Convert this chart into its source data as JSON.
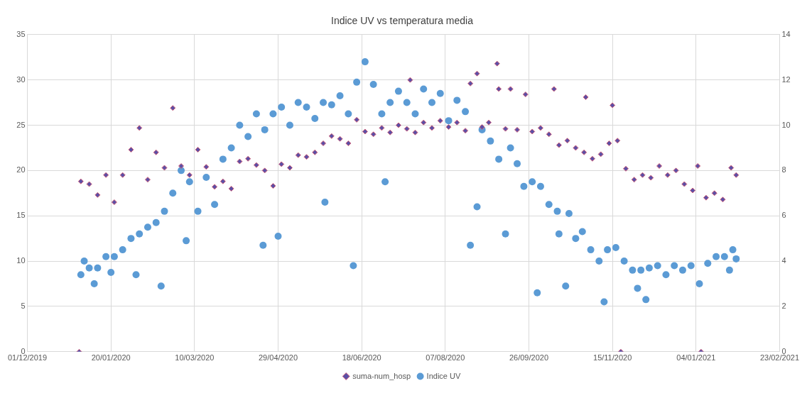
{
  "chart_data": {
    "type": "scatter",
    "title": "Indice UV vs temperatura media",
    "xlim": [
      "2019-12-01",
      "2021-02-23"
    ],
    "xticks": [
      {
        "value": "2019-12-01",
        "label": "01/12/2019"
      },
      {
        "value": "2020-01-20",
        "label": "20/01/2020"
      },
      {
        "value": "2020-03-10",
        "label": "10/03/2020"
      },
      {
        "value": "2020-04-29",
        "label": "29/04/2020"
      },
      {
        "value": "2020-06-18",
        "label": "18/06/2020"
      },
      {
        "value": "2020-08-07",
        "label": "07/08/2020"
      },
      {
        "value": "2020-09-26",
        "label": "26/09/2020"
      },
      {
        "value": "2020-11-15",
        "label": "15/11/2020"
      },
      {
        "value": "2021-01-04",
        "label": "04/01/2021"
      },
      {
        "value": "2021-02-23",
        "label": "23/02/2021"
      }
    ],
    "ylim": [
      0,
      35
    ],
    "yticks": [
      0,
      5,
      10,
      15,
      20,
      25,
      30,
      35
    ],
    "y2lim": [
      0,
      14
    ],
    "y2ticks": [
      0,
      2,
      4,
      6,
      8,
      10,
      12,
      14
    ],
    "grid": true,
    "legend": "bottom",
    "series": [
      {
        "name": "suma-num_hosp",
        "color": "#5b4fa6",
        "marker": "diamond",
        "x": [
          "2020-01-01",
          "2020-01-02",
          "2020-01-07",
          "2020-01-12",
          "2020-01-17",
          "2020-01-22",
          "2020-01-27",
          "2020-02-01",
          "2020-02-06",
          "2020-02-11",
          "2020-02-16",
          "2020-02-21",
          "2020-02-26",
          "2020-03-02",
          "2020-03-07",
          "2020-03-12",
          "2020-03-17",
          "2020-03-22",
          "2020-03-27",
          "2020-04-01",
          "2020-04-06",
          "2020-04-11",
          "2020-04-16",
          "2020-04-21",
          "2020-04-26",
          "2020-05-01",
          "2020-05-06",
          "2020-05-11",
          "2020-05-16",
          "2020-05-21",
          "2020-05-26",
          "2020-05-31",
          "2020-06-05",
          "2020-06-10",
          "2020-06-15",
          "2020-06-20",
          "2020-06-25",
          "2020-06-30",
          "2020-07-05",
          "2020-07-10",
          "2020-07-15",
          "2020-07-17",
          "2020-07-20",
          "2020-07-25",
          "2020-07-30",
          "2020-08-04",
          "2020-08-09",
          "2020-08-14",
          "2020-08-19",
          "2020-08-22",
          "2020-08-26",
          "2020-08-29",
          "2020-09-02",
          "2020-09-07",
          "2020-09-08",
          "2020-09-12",
          "2020-09-15",
          "2020-09-19",
          "2020-09-24",
          "2020-09-28",
          "2020-10-03",
          "2020-10-08",
          "2020-10-11",
          "2020-10-14",
          "2020-10-19",
          "2020-10-24",
          "2020-10-29",
          "2020-10-30",
          "2020-11-03",
          "2020-11-08",
          "2020-11-13",
          "2020-11-15",
          "2020-11-18",
          "2020-11-20",
          "2020-11-23",
          "2020-11-28",
          "2020-12-03",
          "2020-12-08",
          "2020-12-13",
          "2020-12-18",
          "2020-12-23",
          "2020-12-28",
          "2021-01-02",
          "2021-01-05",
          "2021-01-07",
          "2021-01-10",
          "2021-01-15",
          "2021-01-20",
          "2021-01-25",
          "2021-01-28"
        ],
        "values": [
          0,
          18.8,
          18.5,
          17.3,
          19.5,
          16.5,
          19.5,
          22.3,
          24.7,
          19.0,
          22.0,
          20.3,
          26.9,
          20.5,
          19.5,
          22.3,
          20.4,
          18.2,
          18.8,
          18.0,
          21.0,
          21.3,
          20.6,
          20.0,
          18.3,
          20.7,
          20.3,
          21.7,
          21.5,
          22.0,
          23.0,
          23.8,
          23.5,
          23.0,
          25.6,
          24.3,
          24.0,
          24.7,
          24.2,
          25.0,
          24.6,
          30.0,
          24.2,
          25.3,
          24.7,
          25.5,
          24.8,
          25.3,
          24.4,
          29.6,
          30.7,
          24.8,
          25.3,
          31.8,
          29.0,
          24.6,
          29.0,
          24.5,
          28.4,
          24.3,
          24.7,
          24.0,
          29.0,
          22.8,
          23.3,
          22.5,
          22.0,
          28.1,
          21.3,
          21.8,
          23.0,
          27.2,
          23.3,
          0,
          20.2,
          19.0,
          19.5,
          19.2,
          20.5,
          19.5,
          20.0,
          18.5,
          17.8,
          20.5,
          0,
          17.0,
          17.5,
          16.8,
          20.3,
          19.5
        ]
      },
      {
        "name": "Indice UV",
        "color": "#5b9bd5",
        "marker": "circle",
        "axis": "y2",
        "x": [
          "2020-01-02",
          "2020-01-04",
          "2020-01-07",
          "2020-01-10",
          "2020-01-12",
          "2020-01-17",
          "2020-01-20",
          "2020-01-22",
          "2020-01-27",
          "2020-02-01",
          "2020-02-04",
          "2020-02-06",
          "2020-02-11",
          "2020-02-16",
          "2020-02-19",
          "2020-02-21",
          "2020-02-26",
          "2020-03-02",
          "2020-03-05",
          "2020-03-07",
          "2020-03-12",
          "2020-03-17",
          "2020-03-22",
          "2020-03-27",
          "2020-04-01",
          "2020-04-06",
          "2020-04-11",
          "2020-04-16",
          "2020-04-20",
          "2020-04-21",
          "2020-04-26",
          "2020-04-29",
          "2020-05-01",
          "2020-05-06",
          "2020-05-11",
          "2020-05-16",
          "2020-05-21",
          "2020-05-26",
          "2020-05-27",
          "2020-05-31",
          "2020-06-05",
          "2020-06-10",
          "2020-06-13",
          "2020-06-15",
          "2020-06-20",
          "2020-06-25",
          "2020-06-30",
          "2020-07-02",
          "2020-07-05",
          "2020-07-10",
          "2020-07-15",
          "2020-07-20",
          "2020-07-25",
          "2020-07-30",
          "2020-08-04",
          "2020-08-09",
          "2020-08-14",
          "2020-08-19",
          "2020-08-22",
          "2020-08-26",
          "2020-08-29",
          "2020-09-03",
          "2020-09-08",
          "2020-09-12",
          "2020-09-15",
          "2020-09-19",
          "2020-09-23",
          "2020-09-28",
          "2020-10-01",
          "2020-10-03",
          "2020-10-08",
          "2020-10-13",
          "2020-10-14",
          "2020-10-18",
          "2020-10-20",
          "2020-10-24",
          "2020-10-28",
          "2020-11-02",
          "2020-11-07",
          "2020-11-10",
          "2020-11-12",
          "2020-11-17",
          "2020-11-22",
          "2020-11-27",
          "2020-11-30",
          "2020-12-02",
          "2020-12-05",
          "2020-12-07",
          "2020-12-12",
          "2020-12-17",
          "2020-12-22",
          "2020-12-27",
          "2021-01-01",
          "2021-01-06",
          "2021-01-11",
          "2021-01-16",
          "2021-01-21",
          "2021-01-24",
          "2021-01-26",
          "2021-01-28"
        ],
        "values": [
          3.4,
          4.0,
          3.7,
          3.0,
          3.7,
          4.2,
          3.5,
          4.2,
          4.5,
          5.0,
          3.4,
          5.2,
          5.5,
          5.7,
          2.9,
          6.2,
          7.0,
          8.0,
          4.9,
          7.5,
          6.2,
          7.7,
          6.5,
          8.5,
          9.0,
          10.0,
          9.5,
          10.5,
          4.7,
          9.8,
          10.5,
          5.1,
          10.8,
          10.0,
          11.0,
          10.8,
          10.3,
          11.0,
          6.6,
          10.9,
          11.3,
          10.5,
          3.8,
          11.9,
          12.8,
          11.8,
          10.5,
          7.5,
          11.0,
          11.5,
          11.0,
          10.5,
          11.6,
          11.0,
          11.4,
          10.2,
          11.1,
          10.6,
          4.7,
          6.4,
          9.8,
          9.3,
          8.5,
          5.2,
          9.0,
          8.3,
          7.3,
          7.5,
          2.6,
          7.3,
          6.5,
          6.2,
          5.2,
          2.9,
          6.1,
          5.0,
          5.3,
          4.5,
          4.0,
          2.2,
          4.5,
          4.6,
          4.0,
          3.6,
          2.8,
          3.6,
          2.3,
          3.7,
          3.8,
          3.4,
          3.8,
          3.6,
          3.8,
          3.0,
          3.9,
          4.2,
          4.2,
          3.6,
          4.5,
          4.1
        ]
      }
    ]
  }
}
